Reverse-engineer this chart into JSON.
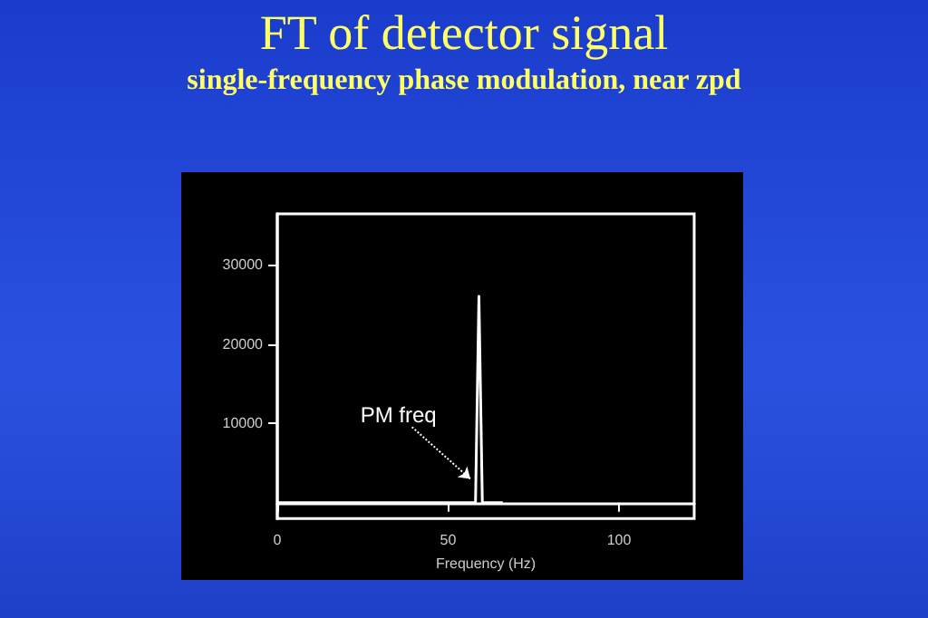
{
  "chart_data": {
    "type": "line",
    "title": "FT of detector signal",
    "subtitle": "single-frequency phase modulation, near zpd",
    "xlabel": "Frequency (Hz)",
    "x": [
      0,
      4,
      8,
      12,
      16,
      20,
      24,
      28,
      32,
      36,
      40,
      44,
      48,
      52,
      56,
      58,
      59,
      60,
      62,
      64,
      66
    ],
    "series": [
      {
        "color": "#ffffff",
        "values": [
          0,
          0,
          0,
          0,
          0,
          0,
          0,
          0,
          0,
          0,
          0,
          0,
          0,
          0,
          0,
          0,
          26000,
          0,
          0,
          0,
          0
        ]
      }
    ],
    "xlim": [
      0,
      122
    ],
    "xticks": [
      0,
      50,
      100
    ],
    "ylim": [
      -2000,
      36400
    ],
    "yticks": [
      10000,
      20000,
      30000
    ],
    "annotations": [
      {
        "text": "PM freq",
        "x": 56.5,
        "y": 3000
      }
    ],
    "grid": false,
    "marker": "none",
    "line_style": "solid"
  }
}
